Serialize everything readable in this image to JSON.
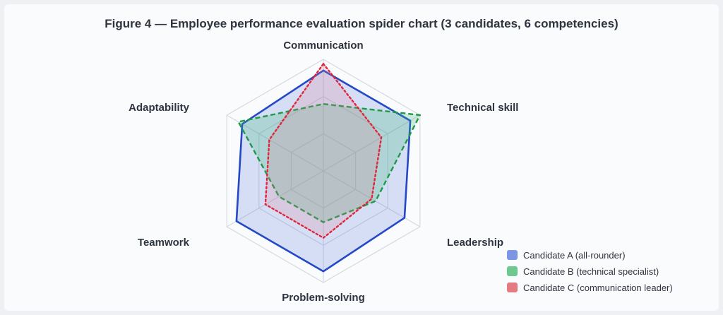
{
  "chart_data": {
    "type": "radar",
    "title": "Figure 4 — Employee performance evaluation spider chart (3 candidates, 6 competencies)",
    "axes": [
      "Communication",
      "Technical skill",
      "Leadership",
      "Problem-solving",
      "Teamwork",
      "Adaptability"
    ],
    "range": [
      0,
      5
    ],
    "grid_levels": 3,
    "legend_position": "bottom-right",
    "series": [
      {
        "name": "Candidate A (all-rounder)",
        "values": [
          4.5,
          4.5,
          4.2,
          4.5,
          4.5,
          4.2
        ],
        "color": "#2448c8",
        "fill": "rgba(80,120,220,0.22)",
        "line_style": "solid",
        "legend_color": "#7b97e3"
      },
      {
        "name": "Candidate B (technical specialist)",
        "values": [
          3.0,
          5.0,
          2.7,
          2.3,
          2.3,
          4.4
        ],
        "color": "#1e9a46",
        "fill": "rgba(60,185,120,0.25)",
        "line_style": "dashed",
        "legend_color": "#6fc98f"
      },
      {
        "name": "Candidate C (communication leader)",
        "values": [
          4.8,
          3.0,
          2.5,
          3.0,
          3.0,
          2.8
        ],
        "color": "#e0263a",
        "fill": "rgba(226,120,140,0.20)",
        "line_style": "dotted",
        "legend_color": "#e37b80"
      }
    ]
  }
}
